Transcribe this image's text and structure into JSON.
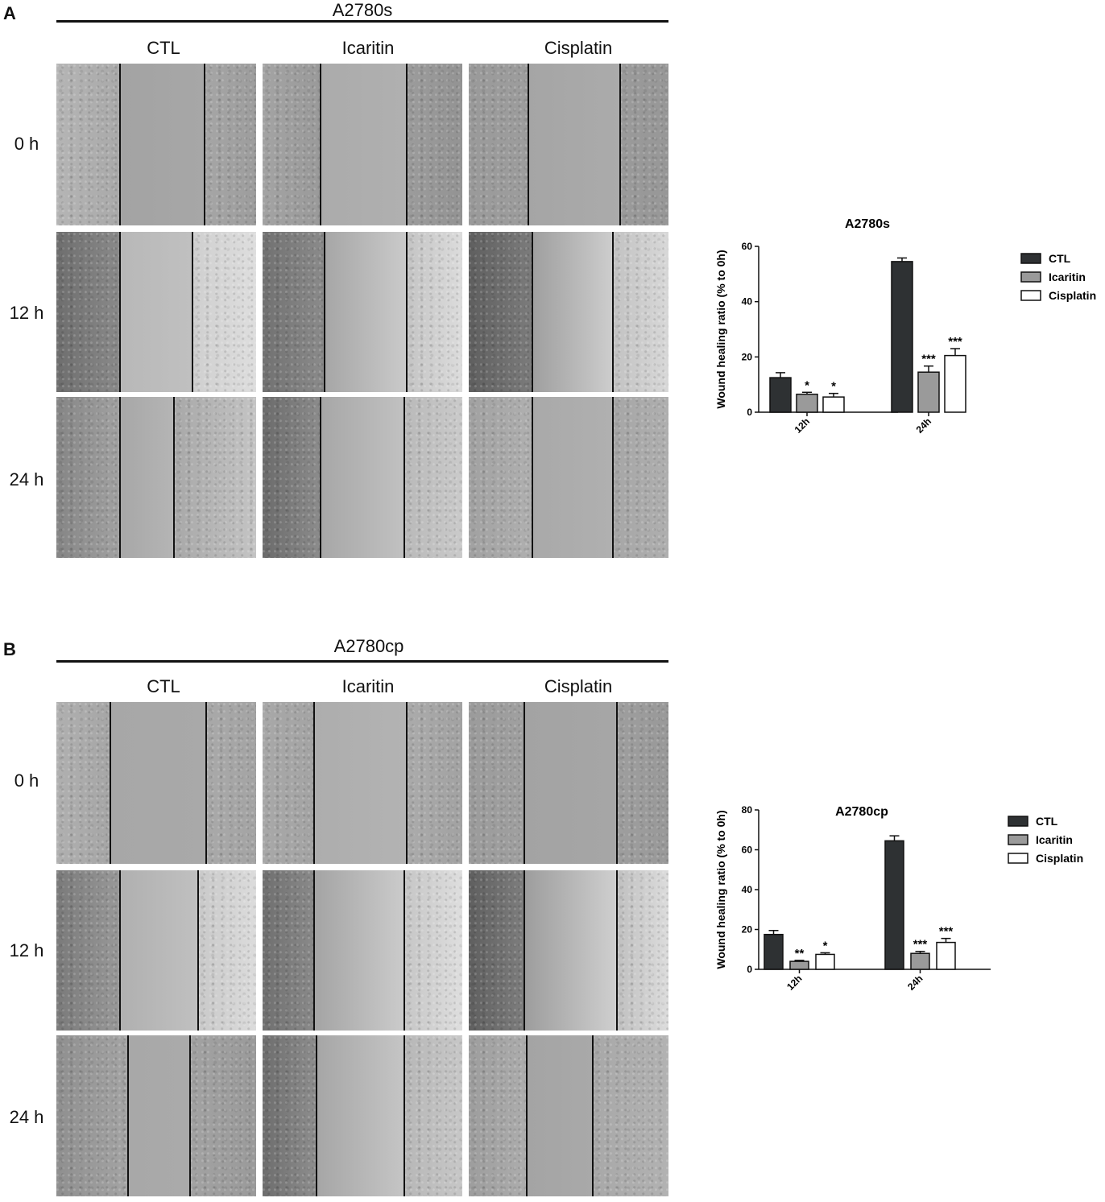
{
  "panels": [
    {
      "letter": "A",
      "cell_line": "A2780s",
      "columns": [
        "CTL",
        "Icaritin",
        "Cisplatin"
      ],
      "rows": [
        "0 h",
        "12 h",
        "24 h"
      ]
    },
    {
      "letter": "B",
      "cell_line": "A2780cp",
      "columns": [
        "CTL",
        "Icaritin",
        "Cisplatin"
      ],
      "rows": [
        "0 h",
        "12 h",
        "24 h"
      ]
    }
  ],
  "chart_data": [
    {
      "type": "bar",
      "title": "A2780s",
      "ylabel": "Wound healing ratio (% to 0h)",
      "xlabel": "",
      "categories": [
        "12h",
        "24h"
      ],
      "ylim": [
        0,
        60
      ],
      "yticks": [
        0,
        20,
        40,
        60
      ],
      "legend_position": "right",
      "series": [
        {
          "name": "CTL",
          "color": "#2e3133",
          "values": [
            12.5,
            54.5
          ],
          "errors": [
            1.8,
            1.3
          ],
          "sig": [
            "",
            ""
          ]
        },
        {
          "name": "Icaritin",
          "color": "#9a9a9a",
          "values": [
            6.5,
            14.5
          ],
          "errors": [
            0.7,
            2.2
          ],
          "sig": [
            "*",
            "***"
          ]
        },
        {
          "name": "Cisplatin",
          "color": "#ffffff",
          "values": [
            5.5,
            20.5
          ],
          "errors": [
            1.3,
            2.5
          ],
          "sig": [
            "*",
            "***"
          ]
        }
      ]
    },
    {
      "type": "bar",
      "title": "A2780cp",
      "ylabel": "Wound healing ratio (% to 0h)",
      "xlabel": "",
      "categories": [
        "12h",
        "24h"
      ],
      "ylim": [
        0,
        80
      ],
      "yticks": [
        0,
        20,
        40,
        60,
        80
      ],
      "legend_position": "right",
      "series": [
        {
          "name": "CTL",
          "color": "#2e3133",
          "values": [
            17.5,
            64.5
          ],
          "errors": [
            2.0,
            2.5
          ],
          "sig": [
            "",
            ""
          ]
        },
        {
          "name": "Icaritin",
          "color": "#9a9a9a",
          "values": [
            4.0,
            8.0
          ],
          "errors": [
            0.5,
            1.0
          ],
          "sig": [
            "**",
            "***"
          ]
        },
        {
          "name": "Cisplatin",
          "color": "#ffffff",
          "values": [
            7.5,
            13.5
          ],
          "errors": [
            0.8,
            2.0
          ],
          "sig": [
            "*",
            "***"
          ]
        }
      ]
    }
  ]
}
